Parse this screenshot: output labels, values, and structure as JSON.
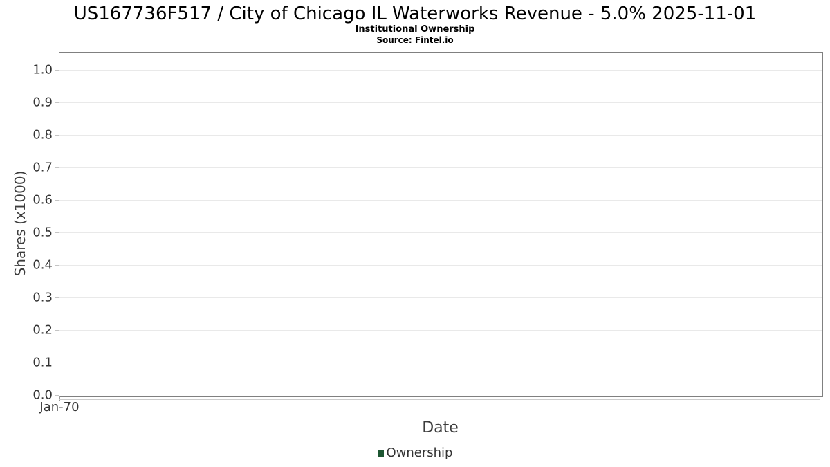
{
  "header": {
    "title": "US167736F517 / City of Chicago IL Waterworks Revenue - 5.0% 2025-11-01",
    "subtitle": "Institutional Ownership",
    "source": "Source: Fintel.io"
  },
  "chart_data": {
    "type": "line",
    "title": "US167736F517 / City of Chicago IL Waterworks Revenue - 5.0% 2025-11-01",
    "subtitle": "Institutional Ownership",
    "source": "Source: Fintel.io",
    "xlabel": "Date",
    "ylabel": "Shares (x1000)",
    "x_ticks": [
      "Jan-70"
    ],
    "yticks": [
      {
        "v": 0.0,
        "label": "0.0"
      },
      {
        "v": 0.1,
        "label": "0.1"
      },
      {
        "v": 0.2,
        "label": "0.2"
      },
      {
        "v": 0.3,
        "label": "0.3"
      },
      {
        "v": 0.4,
        "label": "0.4"
      },
      {
        "v": 0.5,
        "label": "0.5"
      },
      {
        "v": 0.6,
        "label": "0.6"
      },
      {
        "v": 0.7,
        "label": "0.7"
      },
      {
        "v": 0.8,
        "label": "0.8"
      },
      {
        "v": 0.9,
        "label": "0.9"
      },
      {
        "v": 1.0,
        "label": "1.0"
      }
    ],
    "ylim": [
      0.0,
      1.05
    ],
    "grid": true,
    "legend_position": "bottom",
    "series": [
      {
        "name": "Ownership",
        "color": "#1d5632",
        "x": [],
        "values": []
      }
    ]
  },
  "legend": {
    "items": [
      {
        "label": "Ownership",
        "color": "#1d5632"
      }
    ]
  },
  "colors": {
    "background": "#ffffff",
    "plot_border": "#808080",
    "gridline": "#e9e9e9",
    "tick_mark": "#c4c4c4",
    "x_tick_mark": "#999999",
    "tick_text": "#333333",
    "axis_text": "#3c3c3c",
    "title_text": "#000000"
  }
}
